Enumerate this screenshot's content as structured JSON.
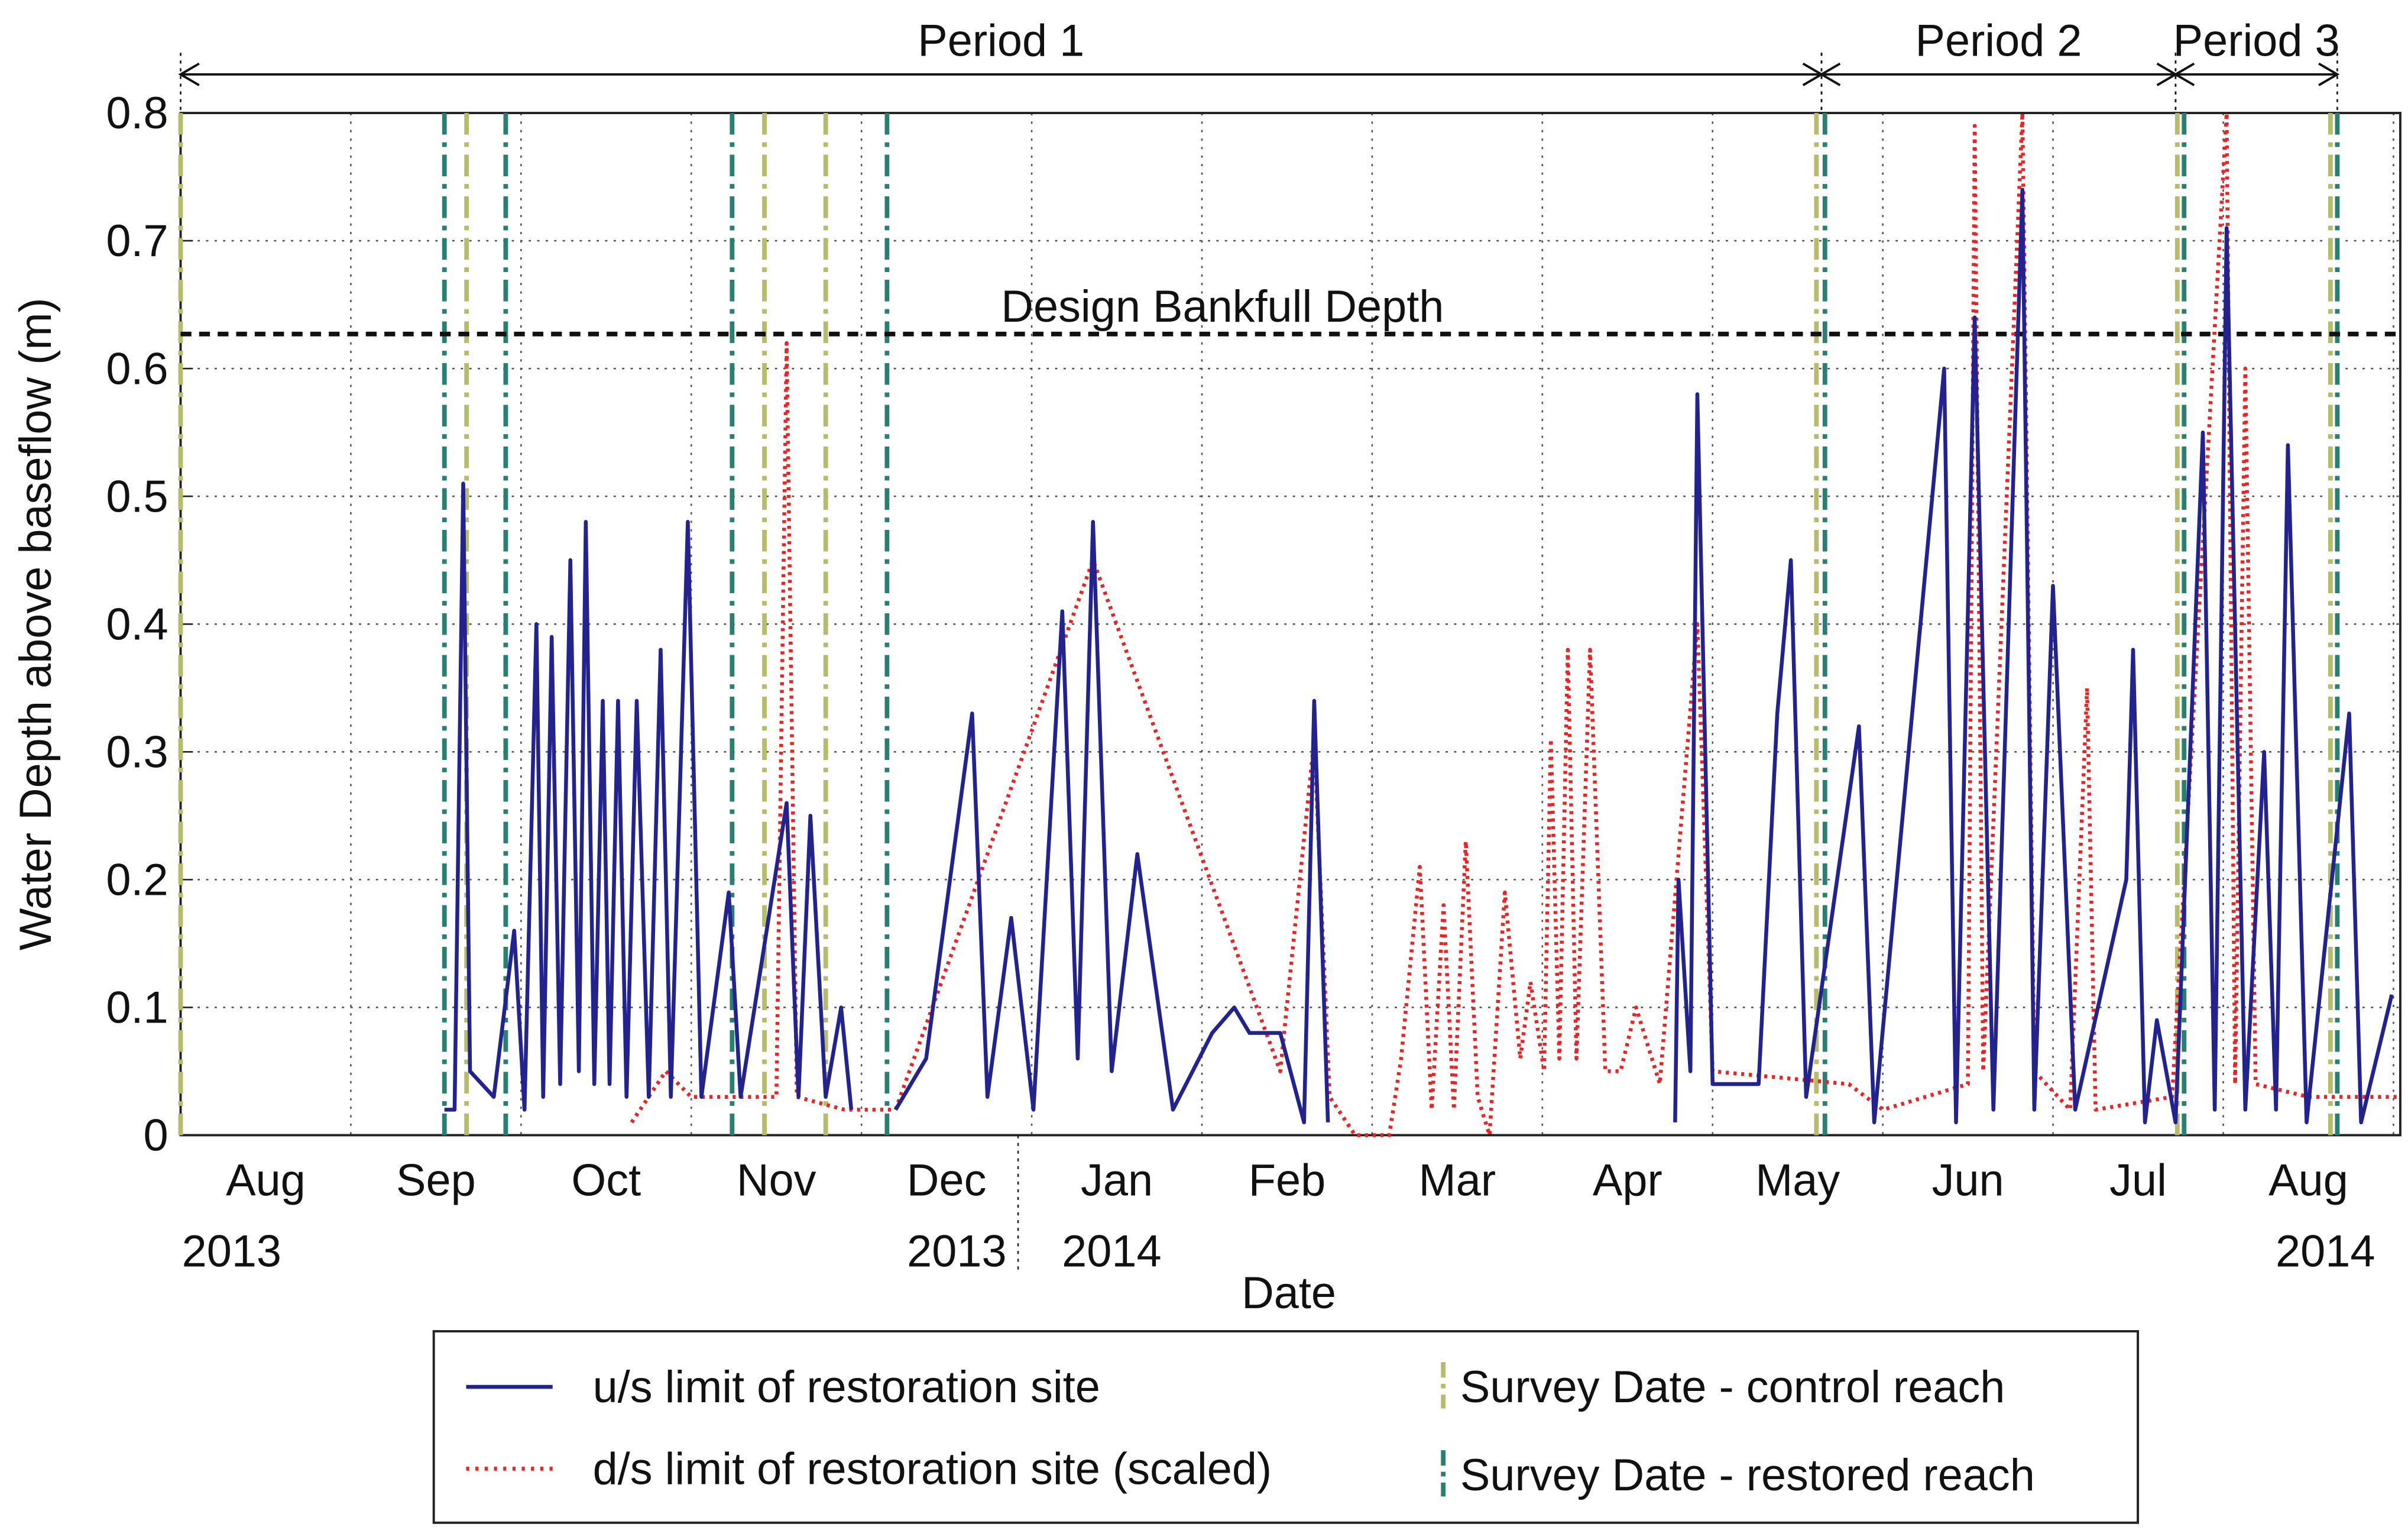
{
  "chart_data": {
    "type": "line",
    "xlabel": "Date",
    "ylabel": "Water Depth above baseflow (m)",
    "xlim": [
      8,
      21.04
    ],
    "ylim": [
      0,
      0.8
    ],
    "yticks": [
      0,
      0.1,
      0.2,
      0.3,
      0.4,
      0.5,
      0.6,
      0.7,
      0.8
    ],
    "xticks": [
      {
        "value": 8.5,
        "label": "Aug"
      },
      {
        "value": 9.5,
        "label": "Sep"
      },
      {
        "value": 10.5,
        "label": "Oct"
      },
      {
        "value": 11.5,
        "label": "Nov"
      },
      {
        "value": 12.5,
        "label": "Dec"
      },
      {
        "value": 13.5,
        "label": "Jan"
      },
      {
        "value": 14.5,
        "label": "Feb"
      },
      {
        "value": 15.5,
        "label": "Mar"
      },
      {
        "value": 16.5,
        "label": "Apr"
      },
      {
        "value": 17.5,
        "label": "May"
      },
      {
        "value": 18.5,
        "label": "Jun"
      },
      {
        "value": 19.5,
        "label": "Jul"
      },
      {
        "value": 20.5,
        "label": "Aug"
      }
    ],
    "xgrid": [
      8,
      9,
      10,
      11,
      12,
      13,
      14,
      15,
      16,
      17,
      18,
      19,
      20,
      21
    ],
    "grid": true,
    "year_labels": [
      {
        "x": 8.3,
        "label": "2013"
      },
      {
        "x": 12.56,
        "label": "2013"
      },
      {
        "x": 13.47,
        "label": "2014"
      },
      {
        "x": 20.6,
        "label": "2014"
      }
    ],
    "year_divider": 12.92,
    "periods": [
      {
        "label": "Period 1",
        "start": 8,
        "end": 17.64
      },
      {
        "label": "Period 2",
        "start": 17.64,
        "end": 19.72
      },
      {
        "label": "Period 3",
        "start": 19.72,
        "end": 20.67
      }
    ],
    "bankfull": {
      "label": "Design Bankfull Depth",
      "value": 0.627
    },
    "series": [
      {
        "name": "u/s limit of restoration site",
        "color": "#23238f",
        "style": "solid",
        "x": [
          9.55,
          9.61,
          9.66,
          9.7,
          9.84,
          9.96,
          10.02,
          10.09,
          10.13,
          10.18,
          10.23,
          10.29,
          10.34,
          10.38,
          10.43,
          10.48,
          10.52,
          10.57,
          10.62,
          10.68,
          10.75,
          10.82,
          10.88,
          10.98,
          11.06,
          11.22,
          11.29,
          11.56,
          11.63,
          11.7,
          11.79,
          11.88,
          11.94,
          null,
          12.2,
          12.38,
          12.65,
          12.74,
          12.88,
          13.01,
          13.18,
          13.27,
          13.36,
          13.47,
          13.62,
          13.83,
          14.06,
          14.19,
          14.28,
          14.46,
          14.6,
          14.66,
          14.74,
          null,
          16.78,
          16.8,
          16.87,
          16.91,
          17.0,
          17.27,
          17.38,
          17.46,
          17.55,
          17.86,
          17.95,
          18.36,
          18.43,
          18.54,
          18.65,
          18.82,
          18.89,
          19.0,
          19.13,
          19.43,
          19.47,
          19.54,
          19.61,
          19.72,
          19.88,
          19.95,
          20.02,
          20.13,
          20.24,
          20.31,
          20.38,
          20.49,
          20.74,
          20.81,
          20.99
        ],
        "values": [
          0.02,
          0.02,
          0.51,
          0.05,
          0.03,
          0.16,
          0.02,
          0.4,
          0.03,
          0.39,
          0.04,
          0.45,
          0.05,
          0.48,
          0.04,
          0.34,
          0.04,
          0.34,
          0.03,
          0.34,
          0.03,
          0.38,
          0.03,
          0.48,
          0.03,
          0.19,
          0.03,
          0.26,
          0.03,
          0.25,
          0.03,
          0.1,
          0.02,
          null,
          0.02,
          0.06,
          0.33,
          0.03,
          0.17,
          0.02,
          0.41,
          0.06,
          0.48,
          0.05,
          0.22,
          0.02,
          0.08,
          0.1,
          0.08,
          0.08,
          0.01,
          0.34,
          0.01,
          null,
          0.01,
          0.2,
          0.05,
          0.58,
          0.04,
          0.04,
          0.33,
          0.45,
          0.03,
          0.32,
          0.01,
          0.6,
          0.01,
          0.64,
          0.02,
          0.74,
          0.02,
          0.43,
          0.02,
          0.2,
          0.38,
          0.01,
          0.09,
          0.01,
          0.55,
          0.02,
          0.71,
          0.02,
          0.3,
          0.02,
          0.54,
          0.01,
          0.33,
          0.01,
          0.11
        ]
      },
      {
        "name": "d/s limit of restoration site (scaled)",
        "color": "#ee2222",
        "style": "dotted",
        "x": [
          10.65,
          10.85,
          11.0,
          11.3,
          11.5,
          11.56,
          11.62,
          11.9,
          12.2,
          13.36,
          14.46,
          14.66,
          14.75,
          14.9,
          15.1,
          15.17,
          15.28,
          15.35,
          15.42,
          15.48,
          15.55,
          15.62,
          15.69,
          15.78,
          15.87,
          15.93,
          16.01,
          16.05,
          16.1,
          16.15,
          16.2,
          16.28,
          16.37,
          16.46,
          16.55,
          16.69,
          16.91,
          17.0,
          17.8,
          18.0,
          18.5,
          18.54,
          18.59,
          18.82,
          18.89,
          19.1,
          19.2,
          19.25,
          19.7,
          20.02,
          20.07,
          20.13,
          20.19,
          20.5,
          21.03
        ],
        "values": [
          0.01,
          0.05,
          0.03,
          0.03,
          0.03,
          0.62,
          0.03,
          0.02,
          0.02,
          0.45,
          0.05,
          0.31,
          0.03,
          0,
          0,
          0.06,
          0.21,
          0.02,
          0.18,
          0.02,
          0.23,
          0.03,
          0,
          0.19,
          0.06,
          0.12,
          0.05,
          0.31,
          0.06,
          0.38,
          0.06,
          0.38,
          0.05,
          0.05,
          0.1,
          0.04,
          0.4,
          0.05,
          0.04,
          0.02,
          0.04,
          0.79,
          0.05,
          0.8,
          0.05,
          0.02,
          0.35,
          0.02,
          0.03,
          0.8,
          0.04,
          0.6,
          0.04,
          0.03,
          0.03
        ]
      }
    ],
    "vlines": [
      {
        "name": "Survey Date - control reach",
        "color": "#b5bd6a",
        "x": [
          8.0,
          9.68,
          11.43,
          11.79,
          17.61,
          19.73,
          20.63
        ]
      },
      {
        "name": "Survey Date - restored reach",
        "color": "#2a8070",
        "x": [
          9.55,
          9.91,
          11.24,
          12.15,
          17.66,
          19.77,
          20.67
        ]
      }
    ]
  }
}
